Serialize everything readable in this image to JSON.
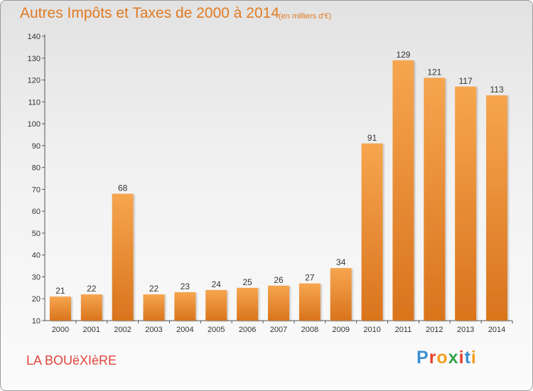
{
  "header": {
    "title": "Autres Impôts et Taxes de 2000 à 2014",
    "unit": "(en milliers d'€)"
  },
  "footer": {
    "commune": "LA BOUëXIèRE",
    "brand": "Proxiti"
  },
  "colors": {
    "bar_light": "#f6a54f",
    "bar_dark": "#d9741d",
    "title": "#e07a22",
    "commune": "#e0453c",
    "brand": [
      "#3b8fd1",
      "#e4402e",
      "#f0a020",
      "#3aa349",
      "#e4402e",
      "#3b8fd1",
      "#f0a020"
    ]
  },
  "chart_data": {
    "type": "bar",
    "title": "Autres Impôts et Taxes de 2000 à 2014",
    "subtitle": "(en milliers d'€)",
    "xlabel": "",
    "ylabel": "",
    "categories": [
      "2000",
      "2001",
      "2002",
      "2003",
      "2004",
      "2005",
      "2006",
      "2007",
      "2008",
      "2009",
      "2010",
      "2011",
      "2012",
      "2013",
      "2014"
    ],
    "values": [
      21,
      22,
      68,
      22,
      23,
      24,
      25,
      26,
      27,
      34,
      91,
      129,
      121,
      117,
      113
    ],
    "ylim": [
      10,
      140
    ],
    "yticks": [
      10,
      20,
      30,
      40,
      50,
      60,
      70,
      80,
      90,
      100,
      110,
      120,
      130,
      140
    ],
    "grid": false,
    "legend": "none"
  }
}
